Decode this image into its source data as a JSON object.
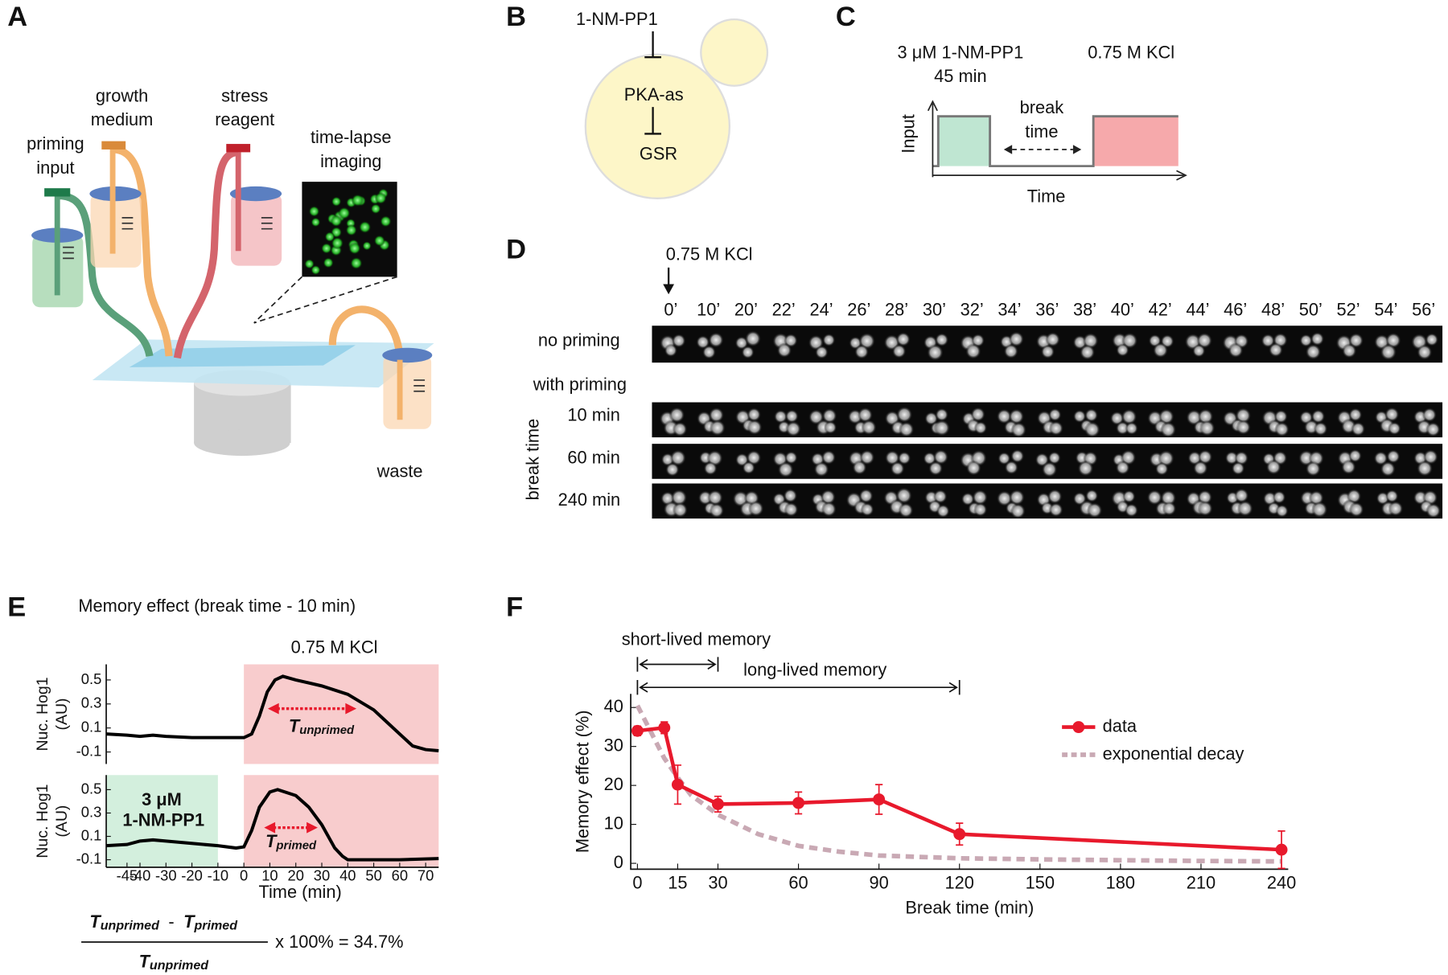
{
  "panel_letters": [
    "A",
    "B",
    "C",
    "D",
    "E",
    "F"
  ],
  "panel_a": {
    "labels": [
      [
        "priming",
        "input"
      ],
      [
        "growth",
        "medium"
      ],
      [
        "stress",
        "reagent"
      ],
      [
        "time-lapse",
        "imaging"
      ],
      [
        "waste"
      ]
    ]
  },
  "panel_b": {
    "drug": "1-NM-PP1",
    "kinase": "PKA-as",
    "target": "GSR"
  },
  "panel_c": {
    "priming": [
      "3 μM 1-NM-PP1",
      "45 min"
    ],
    "stress": "0.75 M KCl",
    "break": [
      "break",
      "time"
    ],
    "y_label": "Input",
    "x_label": "Time"
  },
  "panel_d": {
    "stimulus": "0.75 M KCl",
    "times": [
      "0’",
      "10’",
      "20’",
      "22’",
      "24’",
      "26’",
      "28’",
      "30’",
      "32’",
      "34’",
      "36’",
      "38’",
      "40’",
      "42’",
      "44’",
      "46’",
      "48’",
      "50’",
      "52’",
      "54’",
      "56’"
    ],
    "no_priming": "no priming",
    "with_priming": "with priming",
    "break_time": "break time",
    "breaks": [
      "10 min",
      "60 min",
      "240 min"
    ]
  },
  "panel_e": {
    "title": "Memory effect (break time - 10 min)",
    "stimulus": "0.75 M KCl",
    "priming": [
      "3 μM",
      "1-NM-PP1"
    ],
    "formula": {
      "symbol": "T",
      "unprimed": "unprimed",
      "primed": "primed",
      "minus": "-",
      "result": "x 100% = 34.7%"
    }
  },
  "chart_data": [
    {
      "type": "line",
      "y_label": [
        "Nuc. Hog1",
        "(AU)"
      ],
      "xlim": [
        -53,
        75
      ],
      "ylim": [
        -0.2,
        0.63
      ],
      "yticks": [
        0.5,
        0.3,
        0.1,
        -0.1
      ],
      "color": "#000000",
      "regions": [
        {
          "x": [
            0,
            75
          ],
          "color": "#f8cccd"
        }
      ],
      "x": [
        -53,
        -45,
        -40,
        -35,
        -30,
        -20,
        -10,
        0,
        3,
        6,
        9,
        12,
        15,
        20,
        30,
        40,
        50,
        55,
        60,
        65,
        70,
        75
      ],
      "values": [
        0.05,
        0.04,
        0.03,
        0.04,
        0.03,
        0.02,
        0.02,
        0.02,
        0.05,
        0.2,
        0.4,
        0.5,
        0.53,
        0.5,
        0.45,
        0.38,
        0.25,
        0.15,
        0.05,
        -0.05,
        -0.08,
        -0.09
      ]
    },
    {
      "type": "line",
      "y_label": [
        "Nuc. Hog1",
        "(AU)"
      ],
      "x_label": "Time (min)",
      "xlim": [
        -53,
        75
      ],
      "ylim": [
        -0.165,
        0.625
      ],
      "yticks": [
        0.5,
        0.3,
        0.1,
        -0.1
      ],
      "xticks": [
        -45,
        -40,
        -30,
        -20,
        -10,
        0,
        10,
        20,
        30,
        40,
        50,
        60,
        70
      ],
      "color": "#000000",
      "regions": [
        {
          "x": [
            -53,
            -10
          ],
          "color": "#d3efdd"
        },
        {
          "x": [
            0,
            75
          ],
          "color": "#f8cccd"
        }
      ],
      "x": [
        -53,
        -45,
        -40,
        -35,
        -30,
        -20,
        -10,
        -3,
        0,
        3,
        6,
        10,
        13,
        20,
        25,
        30,
        35,
        38,
        40,
        50,
        60,
        75
      ],
      "values": [
        0.02,
        0.03,
        0.06,
        0.07,
        0.06,
        0.04,
        0.02,
        0.0,
        0.01,
        0.15,
        0.35,
        0.48,
        0.5,
        0.45,
        0.35,
        0.2,
        0.0,
        -0.07,
        -0.1,
        -0.1,
        -0.1,
        -0.09
      ]
    },
    {
      "type": "line",
      "x_label": "Break time (min)",
      "y_label": "Memory effect (%)",
      "xlim": [
        -2.5,
        242.5
      ],
      "ylim": [
        -1.5,
        43.5
      ],
      "xticks": [
        0,
        15,
        30,
        60,
        90,
        120,
        150,
        180,
        210,
        240
      ],
      "yticks": [
        0,
        10,
        20,
        30,
        40
      ],
      "annotations": [
        {
          "text": "short-lived memory",
          "span": [
            0,
            30
          ]
        },
        {
          "text": "long-lived memory",
          "span": [
            0,
            120
          ]
        }
      ],
      "series": [
        {
          "name": "exponential decay",
          "color": "#c9a9b4",
          "dashed": true,
          "x": [
            0,
            10,
            15,
            20,
            30,
            45,
            60,
            75,
            90,
            120,
            150,
            180,
            210,
            240
          ],
          "values": [
            40.5,
            27,
            22,
            17.5,
            12.5,
            7.5,
            4.5,
            3,
            2,
            1.3,
            1,
            0.8,
            0.6,
            0.5
          ]
        },
        {
          "name": "data",
          "color": "#e8192c",
          "dashed": false,
          "x": [
            0,
            10,
            15,
            30,
            60,
            90,
            120,
            240
          ],
          "values": [
            34,
            34.8,
            20.2,
            15.2,
            15.5,
            16.4,
            7.5,
            3.5
          ],
          "errors": [
            1.2,
            1.5,
            5,
            2,
            2.8,
            3.8,
            2.8,
            4.8
          ]
        }
      ]
    }
  ]
}
